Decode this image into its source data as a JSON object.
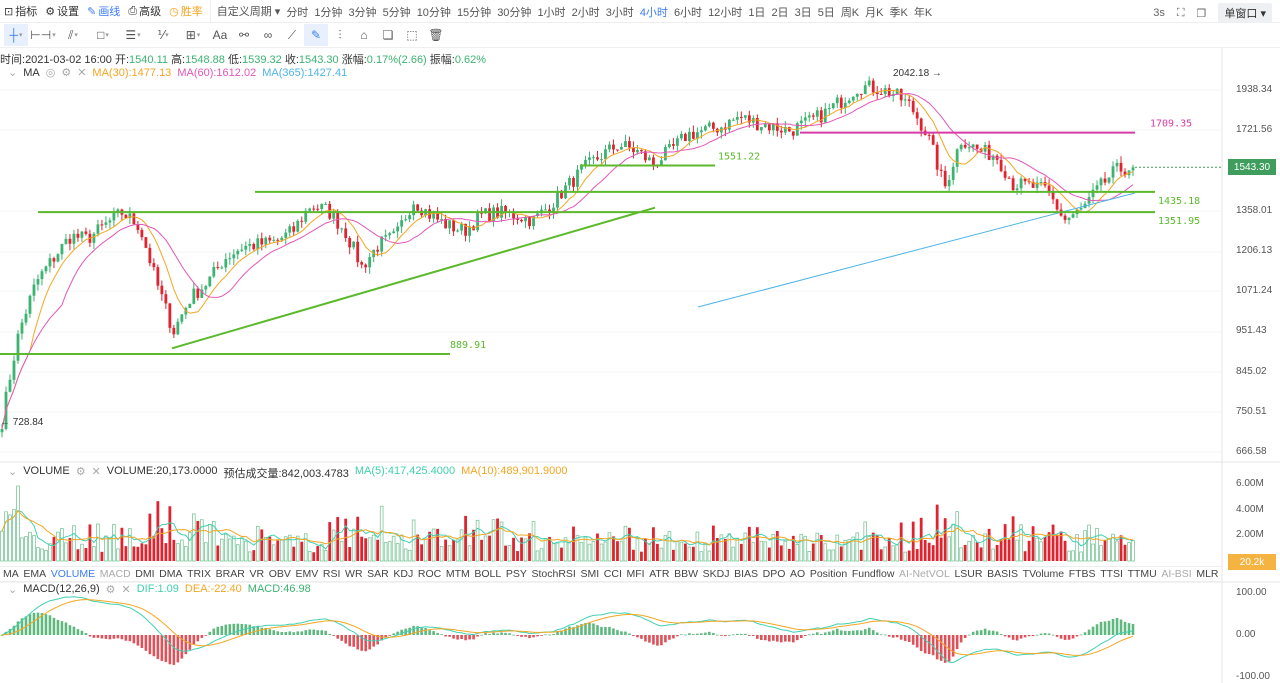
{
  "toolbar": {
    "items": [
      {
        "icon": "indicator-icon",
        "label": "指标"
      },
      {
        "icon": "gear-icon",
        "label": "设置"
      },
      {
        "icon": "pen-icon",
        "label": "画线"
      },
      {
        "icon": "printer-icon",
        "label": "高级"
      },
      {
        "icon": "clock-icon",
        "label": "胜率"
      }
    ],
    "custom_period": "自定义周期",
    "periods": [
      "分时",
      "1分钟",
      "3分钟",
      "5分钟",
      "10分钟",
      "15分钟",
      "30分钟",
      "1小时",
      "2小时",
      "3小时",
      "4小时",
      "6小时",
      "12小时",
      "1日",
      "2日",
      "3日",
      "5日",
      "周K",
      "月K",
      "季K",
      "年K"
    ],
    "active_period": "4小时",
    "refresh": "3s",
    "window": "单窗口"
  },
  "drawing_tools": [
    "crosshair",
    "horizontal-line",
    "trend-line",
    "rectangle",
    "parallel-lines",
    "fib",
    "measure",
    "text",
    "magnet",
    "link",
    "ruler",
    "draw-mode",
    "lock-tools",
    "unlock",
    "copy",
    "screenshot",
    "trash"
  ],
  "drawing_text_label": "Aa",
  "ohlc": {
    "time_label": "时间:",
    "time": "2021-03-02 16:00",
    "open_label": "开:",
    "open": "1540.11",
    "high_label": "高:",
    "high": "1548.88",
    "low_label": "低:",
    "low": "1539.32",
    "close_label": "收:",
    "close": "1543.30",
    "change_label": "涨幅:",
    "change": "0.17%(2.66)",
    "amp_label": "振幅:",
    "amp": "0.62%"
  },
  "ma": {
    "name": "MA",
    "ma30": "MA(30):1477.13",
    "ma60": "MA(60):1612.02",
    "ma365": "MA(365):1427.41"
  },
  "volume": {
    "name": "VOLUME",
    "value": "VOLUME:20,173.0000",
    "est": "预估成交量:842,003.4783",
    "ma5": "MA(5):417,425.4000",
    "ma10": "MA(10):489,901.9000",
    "axis": [
      "6.00M",
      "4.00M",
      "2.00M"
    ],
    "current": "20.2k"
  },
  "macd": {
    "name": "MACD(12,26,9)",
    "dif": "DIF:1.09",
    "dea": "DEA:-22.40",
    "macd": "MACD:46.98",
    "axis": [
      "100.00",
      "0.00",
      "-100.00"
    ]
  },
  "indicator_tabs": [
    "MA",
    "EMA",
    "VOLUME",
    "MACD",
    "DMI",
    "DMA",
    "TRIX",
    "BRAR",
    "VR",
    "OBV",
    "EMV",
    "RSI",
    "WR",
    "SAR",
    "KDJ",
    "ROC",
    "MTM",
    "BOLL",
    "PSY",
    "StochRSI",
    "SMI",
    "CCI",
    "MFI",
    "ATR",
    "BBW",
    "SKDJ",
    "BIAS",
    "DPO",
    "AO",
    "Position",
    "Fundflow",
    "AI-NetVOL",
    "LSUR",
    "BASIS",
    "TVolume",
    "FTBS",
    "TTSI",
    "TTMU",
    "AI-BSI",
    "MLR"
  ],
  "indicator_active": "VOLUME",
  "indicator_dim": [
    "MACD",
    "AI-NetVOL",
    "AI-BSI"
  ],
  "colors": {
    "up": "#3cb371",
    "down": "#e0242f",
    "ma30": "#f5a623",
    "ma60": "#e357b8",
    "ma365": "#4db4e6",
    "accent": "#3b7cf5",
    "hline": "#5cb82c",
    "hline_pink": "#d63ca8"
  },
  "chart_data": {
    "type": "candlestick",
    "scale": "log",
    "ylim": [
      666.58,
      2050
    ],
    "y_ticks": [
      "1938.34",
      "1721.56",
      "1358.01",
      "1206.13",
      "1071.24",
      "951.43",
      "845.02",
      "750.51",
      "666.58"
    ],
    "last_price": "1543.30",
    "high_label": "2042.18",
    "low_label": "728.84",
    "close_path": [
      730,
      950,
      1100,
      1180,
      1260,
      1250,
      1300,
      1350,
      1300,
      1100,
      950,
      1050,
      1100,
      1180,
      1220,
      1230,
      1240,
      1280,
      1380,
      1360,
      1280,
      1150,
      1230,
      1260,
      1400,
      1340,
      1300,
      1280,
      1340,
      1350,
      1340,
      1320,
      1380,
      1460,
      1540,
      1600,
      1650,
      1620,
      1560,
      1620,
      1700,
      1720,
      1740,
      1790,
      1760,
      1740,
      1720,
      1760,
      1810,
      1880,
      1960,
      1950,
      1920,
      1850,
      1700,
      1450,
      1680,
      1620,
      1600,
      1470,
      1460,
      1440,
      1320,
      1360,
      1450,
      1530,
      1543
    ],
    "horizontal_levels": [
      {
        "value": "889.91",
        "color": "green"
      },
      {
        "value": "1351.95",
        "color": "green"
      },
      {
        "value": "1435.18",
        "color": "green"
      },
      {
        "value": "1551.22",
        "color": "green"
      },
      {
        "value": "1709.35",
        "color": "pink"
      }
    ],
    "trendline": {
      "from": 905,
      "to": 1370
    }
  }
}
